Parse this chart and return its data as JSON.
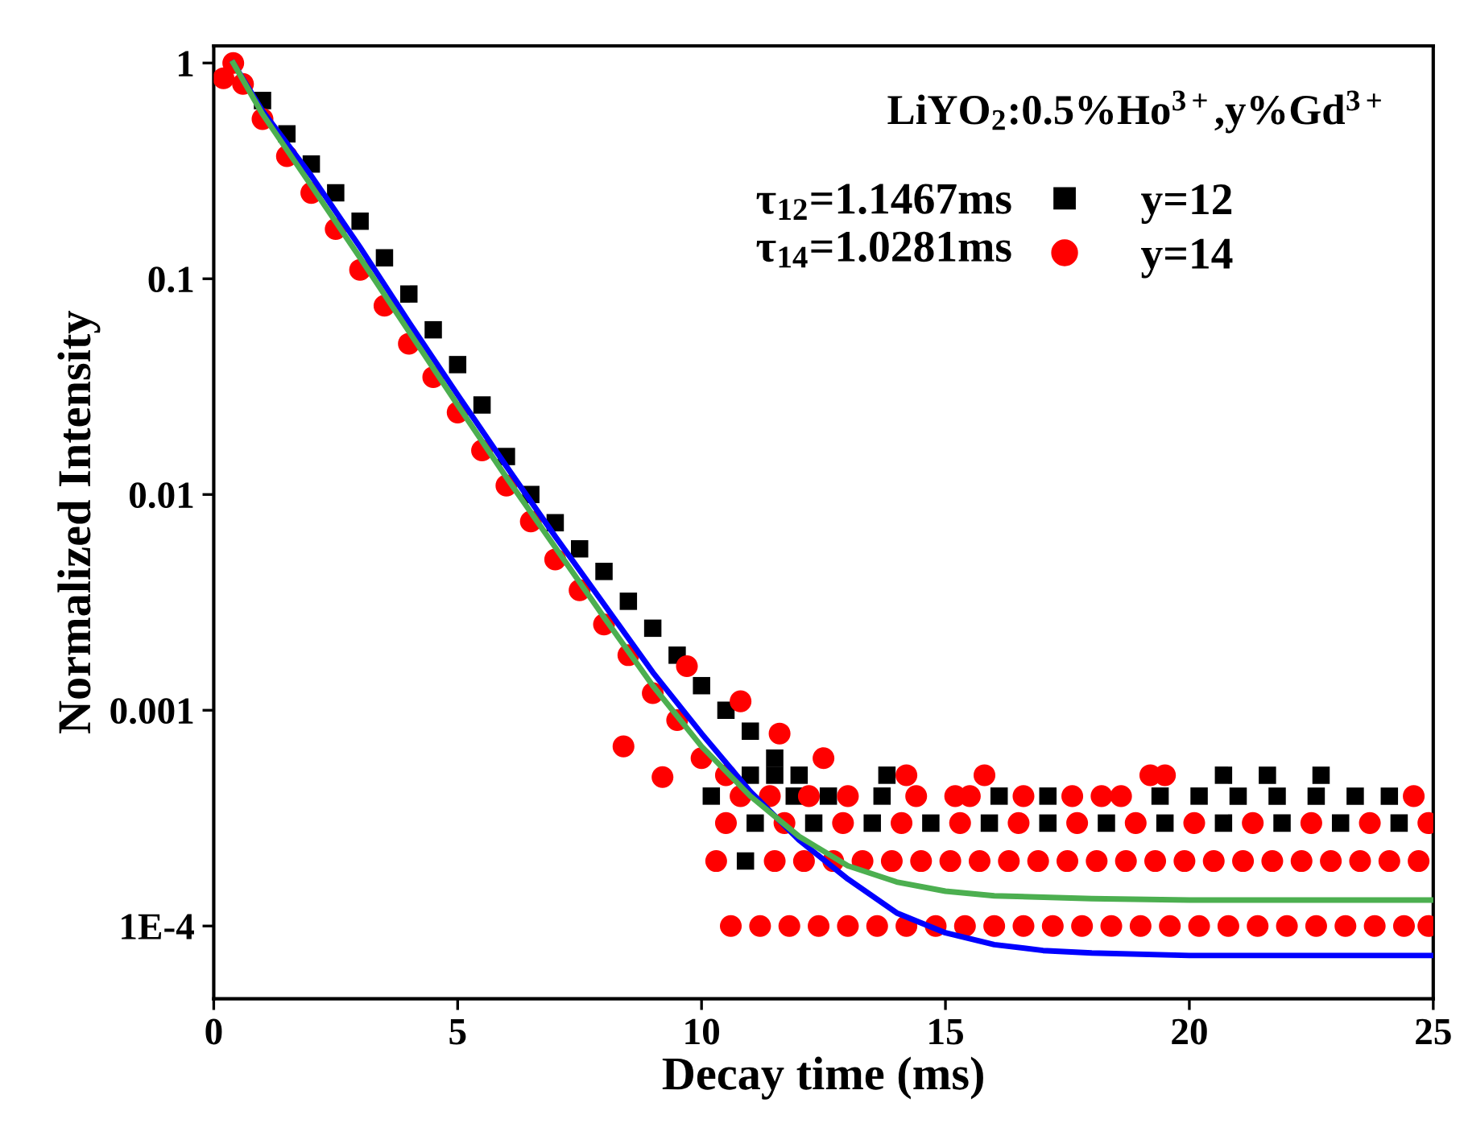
{
  "chart_data": {
    "type": "scatter",
    "xlabel": "Decay time (ms)",
    "ylabel": "Normalized Intensity",
    "legend_title": "LiYO$_{2}$:0.5%Ho$^{3+}$,y%Gd$^{3+}$",
    "annotations": [
      "τ$_{12}$=1.1467ms",
      "τ$_{14}$=1.0281ms"
    ],
    "log": "y",
    "xlim": [
      0,
      25
    ],
    "ylim": [
      4.6e-05,
      1.2
    ],
    "xticks": [
      0,
      5,
      10,
      15,
      20,
      25
    ],
    "yticks": [
      1,
      0.1,
      0.01,
      0.001,
      {
        "value": 0.0001,
        "label": "1E-4"
      }
    ],
    "legend": "top right",
    "grid": false,
    "series": [
      {
        "name": "y=12",
        "color": "#000000",
        "marker": "square",
        "x": [
          1,
          1.5,
          2,
          2.5,
          3,
          3.5,
          4,
          4.5,
          5,
          5.5,
          6,
          6.5,
          7,
          7.5,
          8,
          8.5,
          9,
          9.5,
          10,
          10.5,
          11,
          11.5,
          12,
          11,
          11.5,
          13.8,
          20.7,
          21.6,
          22.7,
          10.2,
          11.9,
          12.6,
          13.7,
          16.1,
          17.1,
          19.4,
          20.2,
          21,
          21.8,
          22.6,
          23.4,
          24.1,
          11.1,
          12.3,
          13.5,
          14.7,
          15.9,
          17.1,
          18.3,
          19.5,
          20.7,
          21.9,
          23.1,
          24.3,
          10.9
        ],
        "values": [
          0.67,
          0.47,
          0.34,
          0.25,
          0.185,
          0.125,
          0.085,
          0.058,
          0.04,
          0.026,
          0.015,
          0.01,
          0.0074,
          0.0056,
          0.0044,
          0.0032,
          0.0024,
          0.0018,
          0.0013,
          0.001,
          0.0008,
          0.0006,
          0.0005,
          0.0005,
          0.0005,
          0.0005,
          0.0005,
          0.0005,
          0.0005,
          0.0004,
          0.0004,
          0.0004,
          0.0004,
          0.0004,
          0.0004,
          0.0004,
          0.0004,
          0.0004,
          0.0004,
          0.0004,
          0.0004,
          0.0004,
          0.0003,
          0.0003,
          0.0003,
          0.0003,
          0.0003,
          0.0003,
          0.0003,
          0.0003,
          0.0003,
          0.0003,
          0.0003,
          0.0003,
          0.0002
        ]
      },
      {
        "name": "y=14",
        "color": "#ff0000",
        "marker": "circle",
        "x": [
          0.2,
          0.4,
          0.6,
          1,
          1.5,
          2,
          2.5,
          3,
          3.5,
          4,
          4.5,
          5,
          5.5,
          6,
          6.5,
          7,
          7.5,
          8,
          8.5,
          9,
          9.5,
          10,
          10.5,
          8.4,
          9.2,
          9.7,
          10.8,
          11.6,
          12.5,
          14.2,
          15.8,
          19.2,
          19.5,
          10.8,
          11.4,
          12.2,
          13,
          14.4,
          15.2,
          15.5,
          16.6,
          17.6,
          18.2,
          18.6,
          24.6,
          10.5,
          11.7,
          12.9,
          14.1,
          15.3,
          16.5,
          17.7,
          18.9,
          20.1,
          21.3,
          22.5,
          23.7,
          24.9,
          10.3,
          11.5,
          12.1,
          12.7,
          13.3,
          13.9,
          14.5,
          15.1,
          15.7,
          16.3,
          16.9,
          17.5,
          18.1,
          18.7,
          19.3,
          19.9,
          20.5,
          21.1,
          21.7,
          22.3,
          22.9,
          23.5,
          24.1,
          24.7,
          10.6,
          11.2,
          11.8,
          12.4,
          13,
          13.6,
          14.2,
          14.8,
          15.4,
          16,
          16.6,
          17.2,
          17.8,
          18.4,
          19,
          19.6,
          20.2,
          20.8,
          21.4,
          22,
          22.6,
          23.2,
          23.8,
          24.4,
          24.9
        ],
        "values": [
          0.85,
          1.0,
          0.8,
          0.55,
          0.37,
          0.25,
          0.17,
          0.11,
          0.075,
          0.05,
          0.035,
          0.024,
          0.016,
          0.011,
          0.0075,
          0.005,
          0.0036,
          0.0025,
          0.0018,
          0.0012,
          0.0009,
          0.0006,
          0.0005,
          0.00068,
          0.00049,
          0.0016,
          0.0011,
          0.00078,
          0.0006,
          0.0005,
          0.0005,
          0.0005,
          0.0005,
          0.0004,
          0.0004,
          0.0004,
          0.0004,
          0.0004,
          0.0004,
          0.0004,
          0.0004,
          0.0004,
          0.0004,
          0.0004,
          0.0004,
          0.0003,
          0.0003,
          0.0003,
          0.0003,
          0.0003,
          0.0003,
          0.0003,
          0.0003,
          0.0003,
          0.0003,
          0.0003,
          0.0003,
          0.0003,
          0.0002,
          0.0002,
          0.0002,
          0.0002,
          0.0002,
          0.0002,
          0.0002,
          0.0002,
          0.0002,
          0.0002,
          0.0002,
          0.0002,
          0.0002,
          0.0002,
          0.0002,
          0.0002,
          0.0002,
          0.0002,
          0.0002,
          0.0002,
          0.0002,
          0.0002,
          0.0002,
          0.0002,
          0.0001,
          0.0001,
          0.0001,
          0.0001,
          0.0001,
          0.0001,
          0.0001,
          0.0001,
          0.0001,
          0.0001,
          0.0001,
          0.0001,
          0.0001,
          0.0001,
          0.0001,
          0.0001,
          0.0001,
          0.0001,
          0.0001,
          0.0001,
          0.0001,
          0.0001,
          0.0001,
          0.0001,
          0.0001
        ]
      },
      {
        "type": "line",
        "color": "#0000ff",
        "x": [
          0.4,
          1,
          2,
          3,
          4,
          5,
          6,
          7,
          8,
          9,
          10,
          11,
          12,
          13,
          14,
          15,
          16,
          17,
          18,
          20,
          22,
          25
        ],
        "values": [
          1,
          0.6,
          0.3,
          0.14,
          0.063,
          0.029,
          0.0135,
          0.0064,
          0.0031,
          0.0015,
          0.00078,
          0.00042,
          0.00025,
          0.000165,
          0.000115,
          9.3e-05,
          8.2e-05,
          7.7e-05,
          7.5e-05,
          7.3e-05,
          7.3e-05,
          7.3e-05
        ]
      },
      {
        "type": "line",
        "color": "#4caf50",
        "x": [
          0.4,
          1,
          2,
          3,
          4,
          5,
          6,
          7,
          8,
          9,
          10,
          11,
          12,
          13,
          14,
          15,
          16,
          18,
          20,
          25
        ],
        "values": [
          1,
          0.58,
          0.27,
          0.125,
          0.057,
          0.026,
          0.012,
          0.0057,
          0.0027,
          0.0013,
          0.00068,
          0.0004,
          0.00026,
          0.00019,
          0.00016,
          0.000145,
          0.000138,
          0.000134,
          0.000132,
          0.000132
        ]
      }
    ]
  }
}
